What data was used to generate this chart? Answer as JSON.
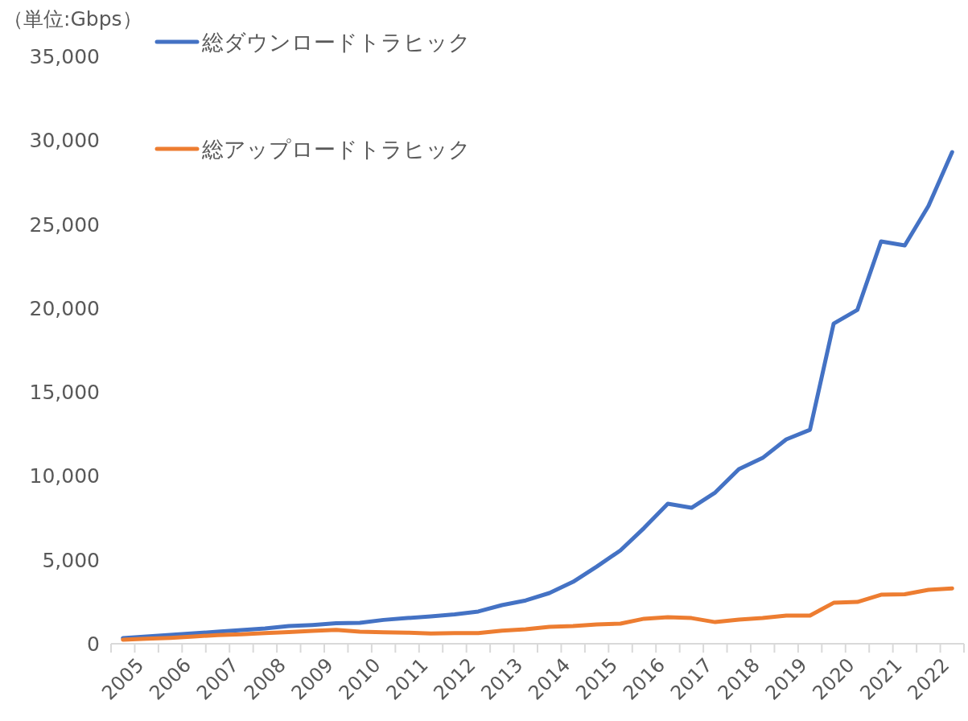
{
  "chart_data": {
    "type": "line",
    "ylabel": "（単位:Gbps）",
    "categories": [
      "2005",
      null,
      "2006",
      null,
      "2007",
      null,
      "2008",
      null,
      "2009",
      null,
      "2010",
      null,
      "2011",
      null,
      "2012",
      null,
      "2013",
      null,
      "2014",
      null,
      "2015",
      null,
      "2016",
      null,
      "2017",
      null,
      "2018",
      null,
      "2019",
      null,
      "2020",
      null,
      "2021",
      null,
      "2022",
      null
    ],
    "series": [
      {
        "name": "総ダウンロードトラヒック",
        "color": "#4472c4",
        "values": [
          340,
          430,
          530,
          620,
          720,
          810,
          910,
          1050,
          1120,
          1220,
          1250,
          1420,
          1530,
          1630,
          1750,
          1920,
          2300,
          2580,
          3020,
          3690,
          4600,
          5560,
          6900,
          8340,
          8100,
          9010,
          10400,
          11070,
          12180,
          12750,
          19080,
          19890,
          23970,
          23730,
          26080,
          29290
        ]
      },
      {
        "name": "総アップロードトラヒック",
        "color": "#ed7d31",
        "values": [
          240,
          300,
          350,
          430,
          520,
          560,
          640,
          700,
          770,
          830,
          720,
          680,
          660,
          610,
          630,
          640,
          780,
          860,
          1010,
          1050,
          1150,
          1200,
          1490,
          1580,
          1530,
          1290,
          1440,
          1530,
          1680,
          1680,
          2440,
          2490,
          2920,
          2950,
          3210,
          3300
        ]
      }
    ],
    "ylim": [
      0,
      35000
    ],
    "yticks": [
      {
        "value": 0,
        "label": "0"
      },
      {
        "value": 5000,
        "label": "5,000"
      },
      {
        "value": 10000,
        "label": "10,000"
      },
      {
        "value": 15000,
        "label": "15,000"
      },
      {
        "value": 20000,
        "label": "20,000"
      },
      {
        "value": 25000,
        "label": "25,000"
      },
      {
        "value": 30000,
        "label": "30,000"
      },
      {
        "value": 35000,
        "label": "35,000"
      }
    ],
    "legend": "top left"
  }
}
